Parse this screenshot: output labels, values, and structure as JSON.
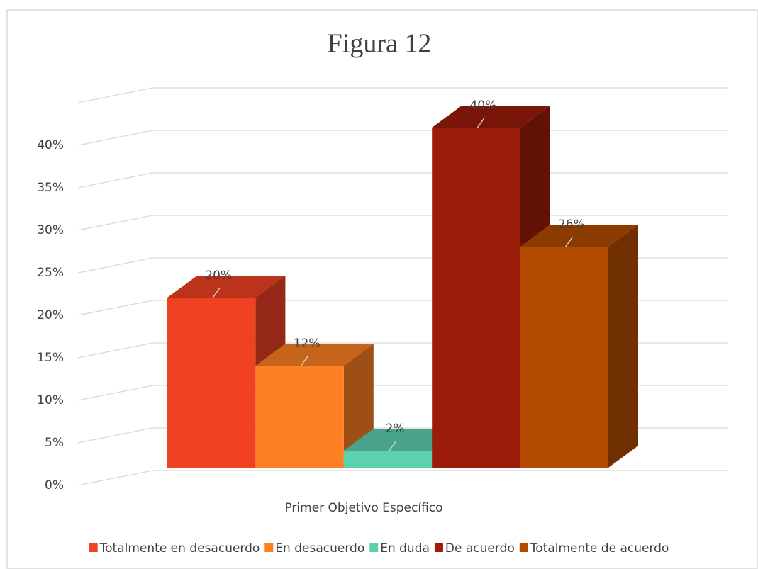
{
  "chart_data": {
    "type": "bar3d",
    "title": "Figura 12",
    "categories": [
      "Primer Objetivo Específico"
    ],
    "series": [
      {
        "name": "Totalmente en desacuerdo",
        "color": "#f04123",
        "values": [
          20
        ],
        "value_labels": [
          "20%"
        ]
      },
      {
        "name": "En desacuerdo",
        "color": "#ff8022",
        "values": [
          12
        ],
        "value_labels": [
          "12%"
        ]
      },
      {
        "name": "En duda",
        "color": "#5cd1b0",
        "values": [
          2
        ],
        "value_labels": [
          "2%"
        ]
      },
      {
        "name": "De acuerdo",
        "color": "#9c1c0a",
        "values": [
          40
        ],
        "value_labels": [
          "40%"
        ]
      },
      {
        "name": "Totalmente de acuerdo",
        "color": "#b34b00",
        "values": [
          26
        ],
        "value_labels": [
          "26%"
        ]
      }
    ],
    "ylim": [
      0,
      45
    ],
    "yticks": [
      {
        "value": 0,
        "label": "0%"
      },
      {
        "value": 5,
        "label": "5%"
      },
      {
        "value": 10,
        "label": "10%"
      },
      {
        "value": 15,
        "label": "15%"
      },
      {
        "value": 20,
        "label": "20%"
      },
      {
        "value": 25,
        "label": "25%"
      },
      {
        "value": 30,
        "label": "30%"
      },
      {
        "value": 35,
        "label": "35%"
      },
      {
        "value": 40,
        "label": "40%"
      }
    ],
    "grid": true,
    "legend": "bottom"
  }
}
